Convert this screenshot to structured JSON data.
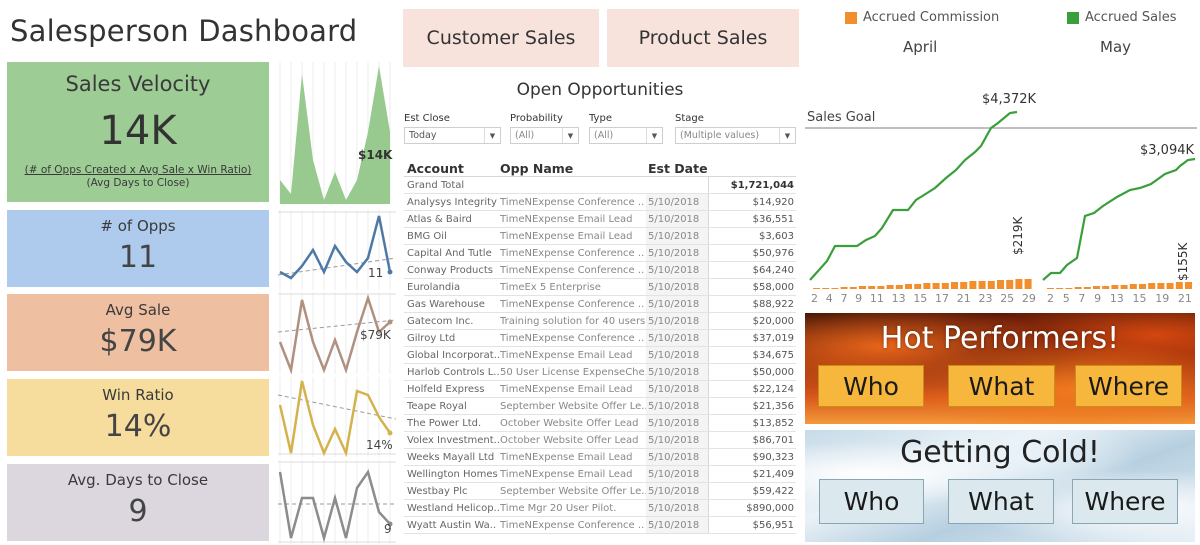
{
  "page": {
    "title": "Salesperson Dashboard"
  },
  "kpis": {
    "velocity": {
      "label": "Sales Velocity",
      "value": "14K",
      "formula_numerator": "(# of Opps Created x Avg Sale x Win Ratio)",
      "formula_denominator": "(Avg Days to Close)",
      "spark_label": "$14K",
      "color": "#9dcc95"
    },
    "opps": {
      "label": "# of Opps",
      "value": "11",
      "spark_label": "11",
      "color": "#aecbee"
    },
    "avg_sale": {
      "label": "Avg Sale",
      "value": "$79K",
      "spark_label": "$79K",
      "color": "#efbfa2"
    },
    "win_ratio": {
      "label": "Win Ratio",
      "value": "14%",
      "spark_label": "14%",
      "color": "#f6dc9d"
    },
    "days_to_close": {
      "label": "Avg. Days to Close",
      "value": "9",
      "spark_label": "9",
      "color": "#dcd7de"
    }
  },
  "nav": {
    "customer_sales": "Customer Sales",
    "product_sales": "Product Sales"
  },
  "opportunities": {
    "title": "Open Opportunities",
    "filters": [
      {
        "label": "Est Close",
        "value": "Today"
      },
      {
        "label": "Probability",
        "value": "(All)"
      },
      {
        "label": "Type",
        "value": "(All)"
      },
      {
        "label": "Stage",
        "value": "(Multiple values)"
      }
    ],
    "columns": [
      "Account",
      "Opp Name",
      "Est Date",
      ""
    ],
    "grand_total": {
      "label": "Grand Total",
      "amount": "$1,721,044"
    },
    "rows": [
      {
        "account": "Analysys Integrity",
        "opp": "TimeNExpense Conference ..",
        "date": "5/10/2018",
        "amount": "$14,920"
      },
      {
        "account": "Atlas & Baird",
        "opp": "TimeNExpense Email Lead",
        "date": "5/10/2018",
        "amount": "$36,551"
      },
      {
        "account": "BMG Oil",
        "opp": "TimeNExpense Email Lead",
        "date": "5/10/2018",
        "amount": "$3,603"
      },
      {
        "account": "Capital And Tutle",
        "opp": "TimeNExpense Conference ..",
        "date": "5/10/2018",
        "amount": "$50,976"
      },
      {
        "account": "Conway Products",
        "opp": "TimeNExpense Conference ..",
        "date": "5/10/2018",
        "amount": "$64,240"
      },
      {
        "account": "Eurolandia",
        "opp": "TimeEx 5 Enterprise",
        "date": "5/10/2018",
        "amount": "$58,000"
      },
      {
        "account": "Gas Warehouse",
        "opp": "TimeNExpense Conference ..",
        "date": "5/10/2018",
        "amount": "$88,922"
      },
      {
        "account": "Gatecom Inc.",
        "opp": "Training solution for 40 users",
        "date": "5/10/2018",
        "amount": "$20,000"
      },
      {
        "account": "Gilroy Ltd",
        "opp": "TimeNExpense Conference ..",
        "date": "5/10/2018",
        "amount": "$37,019"
      },
      {
        "account": "Global Incorporat..",
        "opp": "TimeNExpense Email Lead",
        "date": "5/10/2018",
        "amount": "$34,675"
      },
      {
        "account": "Harlob Controls L..",
        "opp": "50 User License ExpenseChe..",
        "date": "5/10/2018",
        "amount": "$50,000"
      },
      {
        "account": "Holfeld Express",
        "opp": "TimeNExpense Email Lead",
        "date": "5/10/2018",
        "amount": "$22,124"
      },
      {
        "account": "Teape Royal",
        "opp": "September Website Offer Le..",
        "date": "5/10/2018",
        "amount": "$21,356"
      },
      {
        "account": "The Power Ltd.",
        "opp": "October Website Offer Lead",
        "date": "5/10/2018",
        "amount": "$13,852"
      },
      {
        "account": "Volex Investment..",
        "opp": "October Website Offer Lead",
        "date": "5/10/2018",
        "amount": "$86,701"
      },
      {
        "account": "Weeks Mayall Ltd",
        "opp": "TimeNExpense Email Lead",
        "date": "5/10/2018",
        "amount": "$90,323"
      },
      {
        "account": "Wellington Homes",
        "opp": "TimeNExpense Email Lead",
        "date": "5/10/2018",
        "amount": "$21,409"
      },
      {
        "account": "Westbay Plc",
        "opp": "September Website Offer Le..",
        "date": "5/10/2018",
        "amount": "$59,422"
      },
      {
        "account": "Westland Helicop..",
        "opp": "Time Mgr 20 User Pilot.",
        "date": "5/10/2018",
        "amount": "$890,000"
      },
      {
        "account": "Wyatt Austin Wa..",
        "opp": "TimeNExpense Conference ..",
        "date": "5/10/2018",
        "amount": "$56,951"
      }
    ]
  },
  "accrual_chart": {
    "legend": [
      {
        "label": "Accrued Commission",
        "color": "#f28e2b"
      },
      {
        "label": "Accrued Sales",
        "color": "#3a9e3a"
      }
    ],
    "months": [
      "April",
      "May"
    ],
    "goal_label": "Sales Goal",
    "april": {
      "sales_end_label": "$4,372K",
      "commission_end_label": "$219K",
      "x_ticks": [
        "2",
        "4",
        "7",
        "9",
        "11",
        "13",
        "15",
        "17",
        "21",
        "23",
        "25",
        "29"
      ]
    },
    "may": {
      "sales_end_label": "$3,094K",
      "commission_end_label": "$155K",
      "x_ticks": [
        "2",
        "5",
        "7",
        "9",
        "13",
        "15",
        "19",
        "21"
      ]
    }
  },
  "hot_performers": {
    "title": "Hot Performers!",
    "buttons": [
      "Who",
      "What",
      "Where"
    ]
  },
  "getting_cold": {
    "title": "Getting Cold!",
    "buttons": [
      "Who",
      "What",
      "Where"
    ]
  }
}
